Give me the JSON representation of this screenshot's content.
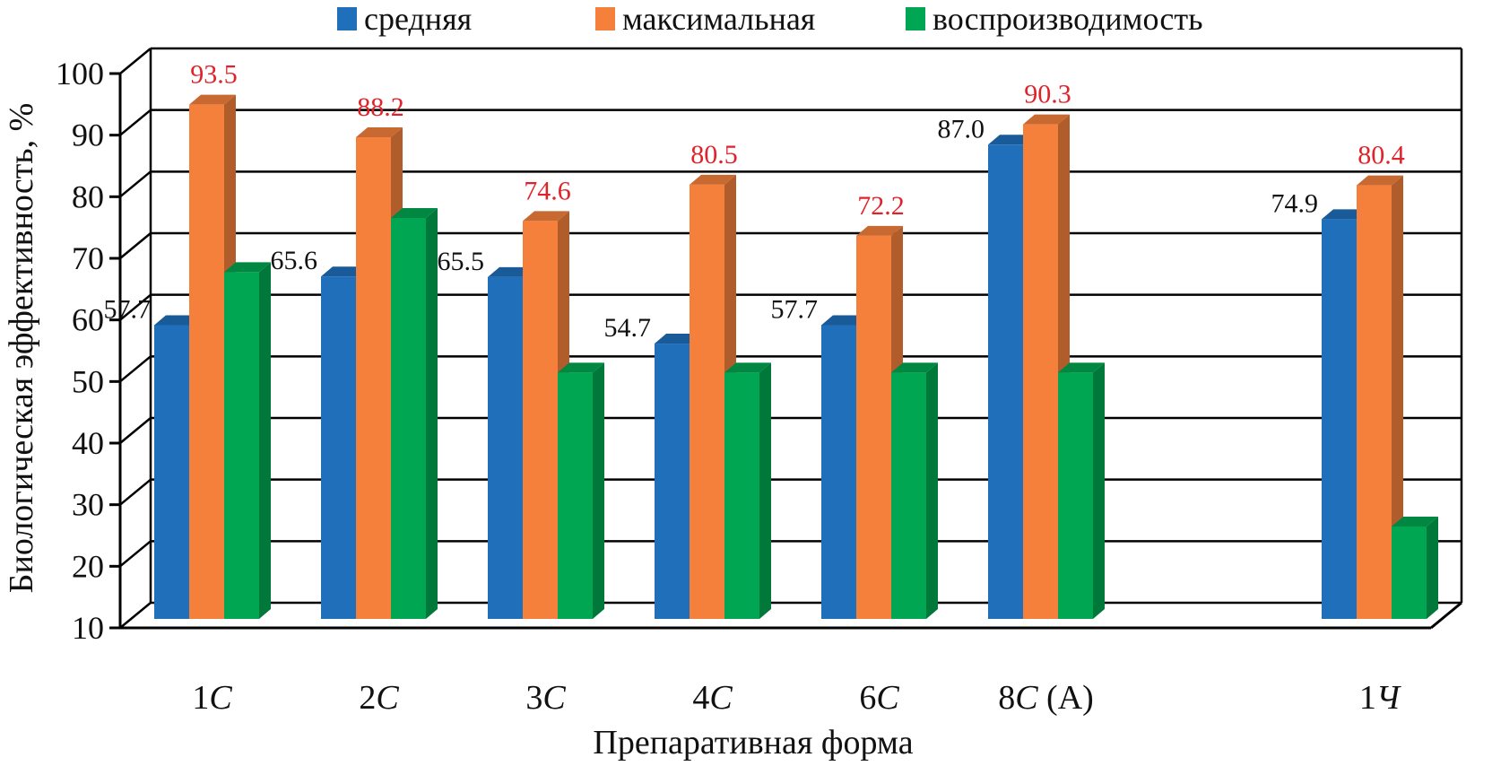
{
  "chart_data": {
    "type": "bar",
    "style": "3d-clustered-column",
    "xlabel": "Препаративная форма",
    "ylabel": "Биологическая эффективность, %",
    "ylim": [
      10,
      100
    ],
    "yticks": [
      10,
      20,
      30,
      40,
      50,
      60,
      70,
      80,
      90,
      100
    ],
    "grid": true,
    "legend_position": "top",
    "categories": [
      {
        "base": "1",
        "italic": "С",
        "suffix": "",
        "gap_before": false
      },
      {
        "base": "2",
        "italic": "С",
        "suffix": "",
        "gap_before": false
      },
      {
        "base": "3",
        "italic": "С",
        "suffix": "",
        "gap_before": false
      },
      {
        "base": "4",
        "italic": "С",
        "suffix": "",
        "gap_before": false
      },
      {
        "base": "6",
        "italic": "С",
        "suffix": "",
        "gap_before": false
      },
      {
        "base": "8",
        "italic": "С",
        "suffix": " (А)",
        "gap_before": false
      },
      {
        "base": "1",
        "italic": "Ч",
        "suffix": "",
        "gap_before": true
      }
    ],
    "series": [
      {
        "name": "средняя",
        "color": "#1f6fba",
        "values": [
          57.7,
          65.6,
          65.5,
          54.7,
          57.7,
          87.0,
          74.9
        ],
        "labels": [
          "57.7",
          "65.6",
          "65.5",
          "54.7",
          "57.7",
          "87.0",
          "74.9"
        ],
        "label_color": "#111111"
      },
      {
        "name": "максимальная",
        "color": "#f4803c",
        "values": [
          93.5,
          88.2,
          74.6,
          80.5,
          72.2,
          90.3,
          80.4
        ],
        "labels": [
          "93.5",
          "88.2",
          "74.6",
          "80.5",
          "72.2",
          "90.3",
          "80.4"
        ],
        "label_color": "#e0232a"
      },
      {
        "name": "воспроизводимость",
        "color": "#00a651",
        "values": [
          66.3,
          75.1,
          50.0,
          50.0,
          50.0,
          50.0,
          25.0
        ],
        "labels": [],
        "label_color": ""
      }
    ]
  }
}
